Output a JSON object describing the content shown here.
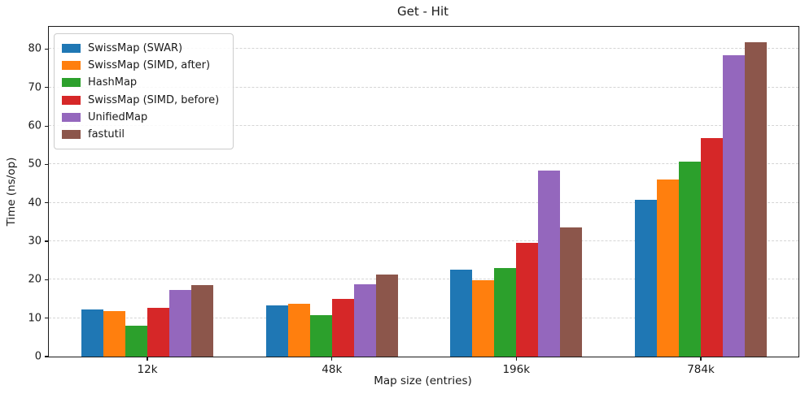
{
  "chart_data": {
    "type": "bar",
    "title": "Get - Hit",
    "xlabel": "Map size (entries)",
    "ylabel": "Time (ns/op)",
    "categories": [
      "12k",
      "48k",
      "196k",
      "784k"
    ],
    "series": [
      {
        "name": "SwissMap (SWAR)",
        "color": "#1f77b4",
        "values": [
          12.3,
          13.3,
          22.6,
          40.7
        ]
      },
      {
        "name": "SwissMap (SIMD, after)",
        "color": "#ff7f0e",
        "values": [
          11.9,
          13.7,
          19.9,
          46.1
        ]
      },
      {
        "name": "HashMap",
        "color": "#2ca02c",
        "values": [
          8.1,
          10.7,
          23.0,
          50.8
        ]
      },
      {
        "name": "SwissMap (SIMD, before)",
        "color": "#d62728",
        "values": [
          12.6,
          15.0,
          29.6,
          56.9
        ]
      },
      {
        "name": "UnifiedMap",
        "color": "#9467bd",
        "values": [
          17.3,
          18.8,
          48.5,
          78.4
        ]
      },
      {
        "name": "fastutil",
        "color": "#8c564b",
        "values": [
          18.5,
          21.3,
          33.6,
          81.7
        ]
      }
    ],
    "ylim": [
      0,
      85.8
    ],
    "yticks": [
      0,
      10,
      20,
      30,
      40,
      50,
      60,
      70,
      80
    ],
    "grid": "horizontal-dashed",
    "legend_position": "upper-left",
    "colors": {
      "axis": "#1a1a1a",
      "gridline": "#d5d5d5",
      "background": "#ffffff"
    }
  }
}
